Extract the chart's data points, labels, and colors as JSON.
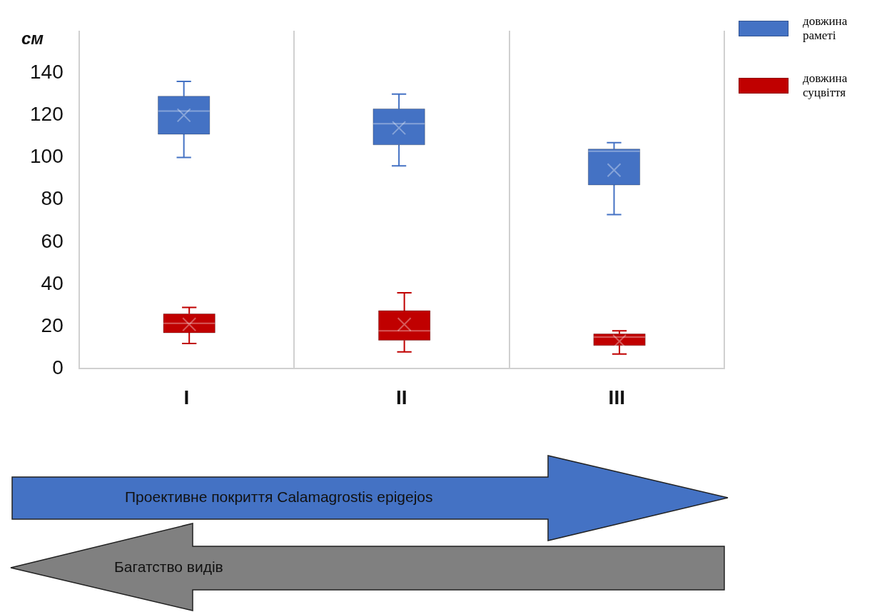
{
  "chart_data": {
    "type": "box",
    "ylabel": "см",
    "categories": [
      "I",
      "II",
      "III"
    ],
    "series": [
      {
        "name": "довжина раметі",
        "color": "#4472c4",
        "boxes": [
          {
            "low": 100,
            "q1": 111,
            "median": 122,
            "q3": 129,
            "high": 136,
            "mean": 120
          },
          {
            "low": 96,
            "q1": 106,
            "median": 116,
            "q3": 123,
            "high": 130,
            "mean": 114
          },
          {
            "low": 73,
            "q1": 87,
            "median": 103,
            "q3": 104,
            "high": 107,
            "mean": 94
          }
        ]
      },
      {
        "name": "довжина суцвіття",
        "color": "#c00000",
        "boxes": [
          {
            "low": 12,
            "q1": 17,
            "median": 21.5,
            "q3": 26,
            "high": 29,
            "mean": 21
          },
          {
            "low": 8,
            "q1": 13.5,
            "median": 18,
            "q3": 27.5,
            "high": 36,
            "mean": 21
          },
          {
            "low": 7,
            "q1": 11,
            "median": 15,
            "q3": 16.5,
            "high": 18,
            "mean": 13
          }
        ]
      }
    ],
    "ylim": [
      0,
      160
    ],
    "yticks": [
      0,
      20,
      40,
      60,
      80,
      100,
      120,
      140
    ],
    "grid": "x",
    "legend": "right",
    "annotations": [
      "Проективне покриття Calamagrostis epigejos",
      "Багатство видів"
    ]
  }
}
